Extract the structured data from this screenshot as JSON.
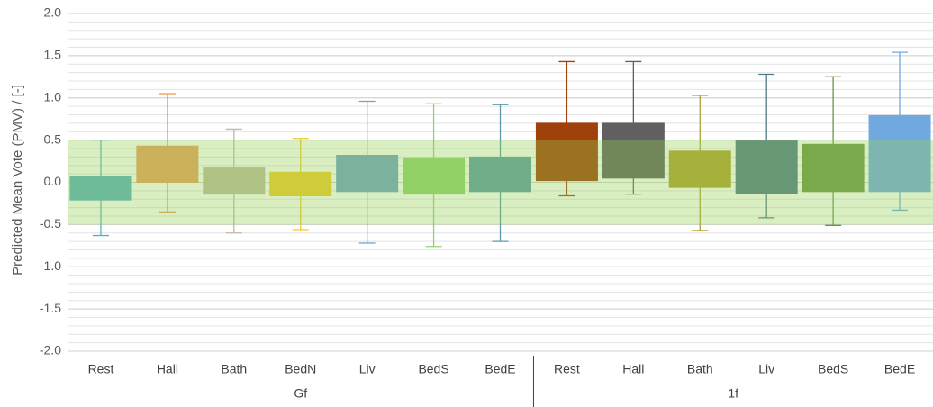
{
  "chart_data": {
    "type": "box",
    "y_label": "Predicted Mean Vote (PMV) / [-]",
    "ylim": [
      -2,
      2
    ],
    "yticks": [
      {
        "value": -2,
        "label": "-2.0"
      },
      {
        "value": -1.5,
        "label": "-1.5"
      },
      {
        "value": -1,
        "label": "-1.0"
      },
      {
        "value": -0.5,
        "label": "-0.5"
      },
      {
        "value": 0,
        "label": "0.0"
      },
      {
        "value": 0.5,
        "label": "0.5"
      },
      {
        "value": 1,
        "label": "1.0"
      },
      {
        "value": 1.5,
        "label": "1.5"
      },
      {
        "value": 2,
        "label": "2.0"
      }
    ],
    "minor_grid_step": 0.1,
    "comfort_band": [
      -0.5,
      0.5
    ],
    "band_color": "#92d050",
    "groups": [
      {
        "name": "Gf",
        "boxes": [
          {
            "category": "Rest",
            "min": -0.63,
            "q1": -0.21,
            "q3": 0.07,
            "max": 0.5,
            "color": "#5bb0c0"
          },
          {
            "category": "Hall",
            "min": -0.35,
            "q1": 0.0,
            "q3": 0.43,
            "max": 1.05,
            "color": "#e8a060"
          },
          {
            "category": "Bath",
            "min": -0.6,
            "q1": -0.14,
            "q3": 0.17,
            "max": 0.63,
            "color": "#c0b8a0"
          },
          {
            "category": "BedN",
            "min": -0.56,
            "q1": -0.16,
            "q3": 0.12,
            "max": 0.52,
            "color": "#f0c830"
          },
          {
            "category": "Liv",
            "min": -0.72,
            "q1": -0.11,
            "q3": 0.32,
            "max": 0.96,
            "color": "#70a0c8"
          },
          {
            "category": "BedS",
            "min": -0.76,
            "q1": -0.14,
            "q3": 0.29,
            "max": 0.93,
            "color": "#90d070"
          },
          {
            "category": "BedE",
            "min": -0.7,
            "q1": -0.11,
            "q3": 0.3,
            "max": 0.92,
            "color": "#5f9aa8"
          }
        ]
      },
      {
        "name": "1f",
        "boxes": [
          {
            "category": "Rest",
            "min": -0.16,
            "q1": 0.02,
            "q3": 0.7,
            "max": 1.43,
            "color": "#a0400a"
          },
          {
            "category": "Hall",
            "min": -0.14,
            "q1": 0.05,
            "q3": 0.7,
            "max": 1.43,
            "color": "#606060"
          },
          {
            "category": "Bath",
            "min": -0.57,
            "q1": -0.06,
            "q3": 0.37,
            "max": 1.03,
            "color": "#b0a030"
          },
          {
            "category": "Liv",
            "min": -0.42,
            "q1": -0.13,
            "q3": 0.49,
            "max": 1.28,
            "color": "#507888"
          },
          {
            "category": "BedS",
            "min": -0.51,
            "q1": -0.11,
            "q3": 0.45,
            "max": 1.25,
            "color": "#6a9448"
          },
          {
            "category": "BedE",
            "min": -0.33,
            "q1": -0.11,
            "q3": 0.79,
            "max": 1.54,
            "color": "#70a8e0"
          }
        ]
      }
    ]
  }
}
